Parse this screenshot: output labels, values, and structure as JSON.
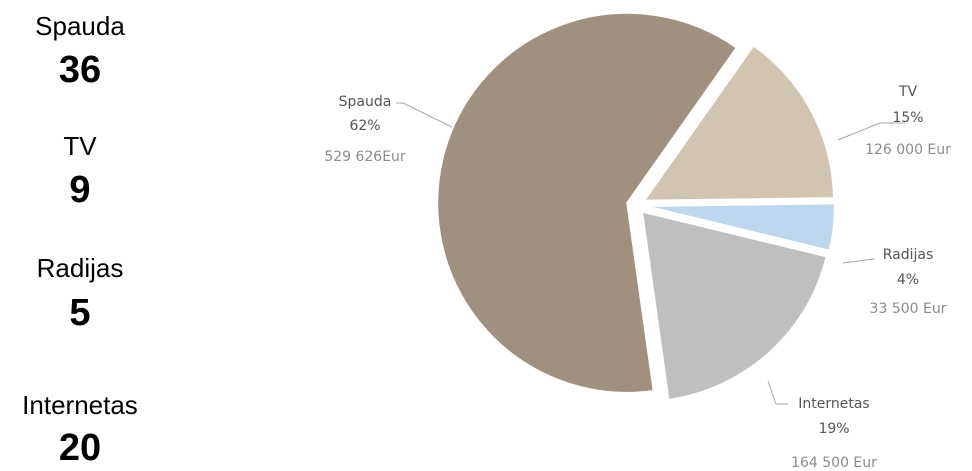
{
  "summary": [
    {
      "label": "Spauda",
      "count": "36"
    },
    {
      "label": "TV",
      "count": "9"
    },
    {
      "label": "Radijas",
      "count": "5"
    },
    {
      "label": "Internetas",
      "count": "20"
    }
  ],
  "chart_data": {
    "type": "pie",
    "categories": [
      "Spauda",
      "TV",
      "Radijas",
      "Internetas"
    ],
    "values": [
      62,
      15,
      4,
      19
    ],
    "value_labels": [
      "62%",
      "15%",
      "4%",
      "19%"
    ],
    "amount_labels": [
      "529 626Eur",
      "126 000 Eur",
      "33 500 Eur",
      "164 500 Eur"
    ],
    "colors": [
      "#a09080",
      "#d1c4b1",
      "#bdd7ee",
      "#bfbfbf"
    ]
  }
}
